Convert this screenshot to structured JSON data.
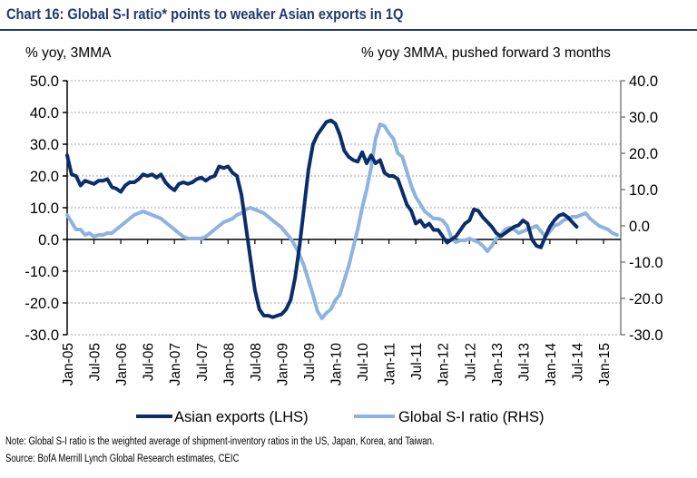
{
  "header": {
    "title": "Chart 16: Global S-I ratio* points to weaker Asian exports in 1Q",
    "unit_left": "% yoy, 3MMA",
    "unit_right": "% yoy 3MMA, pushed forward 3 months"
  },
  "footer": {
    "note": "Note: Global S-I ratio is the weighted average of shipment-inventory ratios in the US, Japan, Korea, and Taiwan.",
    "source": "Source: BofA Merrill Lynch Global Research estimates, CEIC"
  },
  "chart_data": {
    "type": "line",
    "title": "Chart 16: Global S-I ratio* points to weaker Asian exports in 1Q",
    "ylabel_left": "% yoy, 3MMA",
    "ylabel_right": "% yoy 3MMA, pushed forward 3 months",
    "ylim_left": [
      -30,
      50
    ],
    "ylim_right": [
      -30,
      40
    ],
    "yticks_left": [
      "50.0",
      "40.0",
      "30.0",
      "20.0",
      "10.0",
      "0.0",
      "-10.0",
      "-20.0",
      "-30.0"
    ],
    "yticks_right": [
      "40.0",
      "30.0",
      "20.0",
      "10.0",
      "0.0",
      "-10.0",
      "-20.0",
      "-30.0"
    ],
    "xticks": [
      "Jan-05",
      "Jul-05",
      "Jan-06",
      "Jul-06",
      "Jan-07",
      "Jul-07",
      "Jan-08",
      "Jul-08",
      "Jan-09",
      "Jul-09",
      "Jan-10",
      "Jul-10",
      "Jan-11",
      "Jul-11",
      "Jan-12",
      "Jul-12",
      "Jan-13",
      "Jul-13",
      "Jan-14",
      "Jul-14",
      "Jan-15"
    ],
    "grid": true,
    "legend_position": "bottom",
    "x_start": "Jan-05",
    "x_step": "1 month",
    "series": [
      {
        "name": "Asian exports (LHS)",
        "axis": "left",
        "color": "#0b2d6b",
        "values": [
          26.5,
          20.5,
          20.0,
          17.0,
          18.5,
          18.0,
          17.5,
          18.5,
          18.5,
          19.0,
          16.5,
          16.0,
          15.0,
          17.0,
          18.0,
          18.0,
          19.0,
          20.5,
          20.0,
          20.5,
          19.5,
          20.5,
          18.0,
          16.5,
          15.5,
          17.5,
          18.0,
          17.5,
          18.0,
          19.0,
          19.5,
          18.5,
          19.5,
          20.0,
          23.0,
          22.5,
          23.0,
          21.0,
          20.0,
          14.0,
          4.0,
          -6.0,
          -16.0,
          -22.0,
          -24.0,
          -24.0,
          -24.5,
          -24.0,
          -23.5,
          -22.0,
          -19.0,
          -12.0,
          -2.0,
          10.0,
          22.0,
          30.0,
          33.0,
          35.0,
          37.0,
          37.5,
          36.5,
          33.0,
          28.0,
          26.0,
          25.0,
          24.5,
          27.5,
          24.0,
          26.5,
          24.0,
          25.0,
          21.0,
          20.0,
          20.0,
          19.0,
          15.0,
          11.0,
          9.0,
          5.0,
          6.0,
          4.0,
          5.0,
          3.0,
          3.0,
          1.0,
          -1.0,
          0.0,
          1.0,
          3.0,
          5.0,
          6.0,
          9.5,
          9.0,
          7.0,
          5.5,
          4.0,
          2.0,
          1.0,
          2.0,
          3.0,
          4.0,
          4.5,
          6.0,
          5.0,
          0.0,
          -2.0,
          -2.5,
          1.0,
          4.0,
          6.0,
          7.5,
          8.0,
          7.0,
          5.5,
          4.0
        ]
      },
      {
        "name": "Global S-I ratio (RHS)",
        "axis": "right",
        "color": "#8db3e2",
        "values": [
          3.0,
          1.0,
          -1.0,
          -1.0,
          -2.5,
          -2.0,
          -3.0,
          -2.5,
          -2.5,
          -2.0,
          -2.0,
          -1.0,
          0.0,
          1.0,
          2.0,
          3.0,
          3.5,
          4.0,
          3.5,
          3.0,
          2.5,
          2.0,
          1.0,
          0.0,
          -1.0,
          -2.0,
          -3.0,
          -3.5,
          -3.5,
          -3.5,
          -3.5,
          -3.0,
          -2.0,
          -1.0,
          0.0,
          1.0,
          1.5,
          2.0,
          3.0,
          3.5,
          4.5,
          5.0,
          4.5,
          4.0,
          3.5,
          2.5,
          1.5,
          0.5,
          -0.5,
          -2.0,
          -3.5,
          -5.5,
          -8.0,
          -11.0,
          -15.0,
          -19.0,
          -23.5,
          -25.5,
          -24.0,
          -23.0,
          -20.5,
          -19.0,
          -15.0,
          -11.0,
          -6.0,
          -1.0,
          5.0,
          10.0,
          16.0,
          24.0,
          28.0,
          27.5,
          25.5,
          24.0,
          20.0,
          19.0,
          15.0,
          11.0,
          8.0,
          6.0,
          4.0,
          3.0,
          2.0,
          2.0,
          1.5,
          0.0,
          -3.5,
          -4.5,
          -4.0,
          -4.0,
          -3.5,
          -4.0,
          -4.5,
          -5.5,
          -7.0,
          -5.5,
          -3.5,
          -2.5,
          -1.0,
          -0.5,
          -1.0,
          -2.0,
          -1.5,
          -1.0,
          -0.5,
          0.0,
          -1.5,
          -3.0,
          -1.5,
          0.0,
          0.5,
          1.5,
          2.0,
          2.5,
          2.5,
          3.0,
          3.5,
          2.0,
          1.0,
          0.0,
          -0.5,
          -1.0,
          -2.0,
          -2.5
        ]
      }
    ]
  }
}
